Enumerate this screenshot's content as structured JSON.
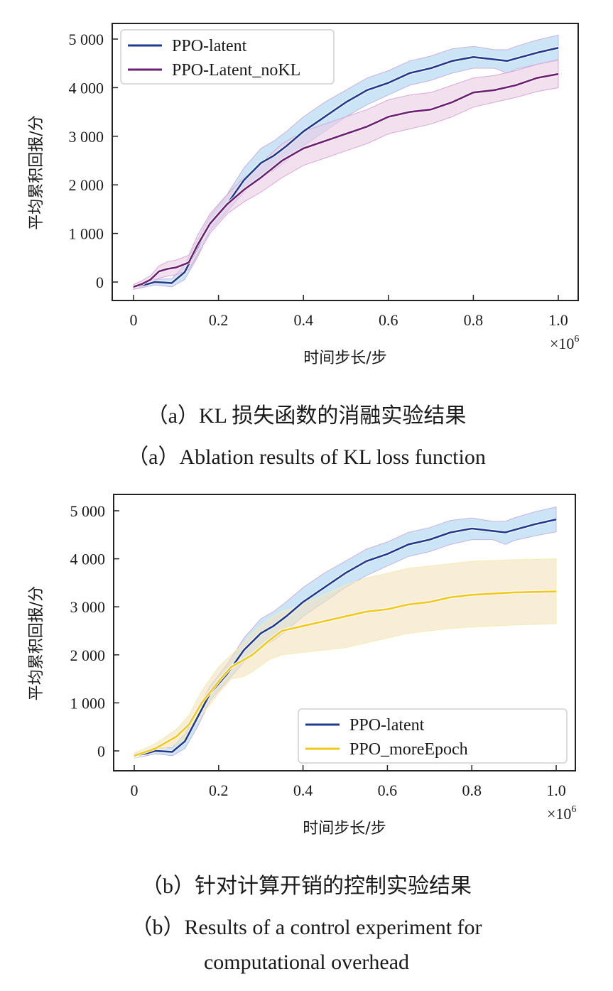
{
  "chart_data": [
    {
      "type": "line",
      "panel": "a",
      "xlabel": "时间步长/步",
      "ylabel": "平均累积回报/分",
      "x_multiplier": "×10",
      "x_multiplier_exp": "6",
      "xlim": [
        -0.05,
        1.05
      ],
      "ylim": [
        -400,
        5300
      ],
      "xticks": [
        0,
        0.2,
        0.4,
        0.6,
        0.8,
        1.0
      ],
      "xtick_labels": [
        "0",
        "0.2",
        "0.4",
        "0.6",
        "0.8",
        "1.0"
      ],
      "yticks": [
        0,
        1000,
        2000,
        3000,
        4000,
        5000
      ],
      "ytick_labels": [
        "0",
        "1 000",
        "2 000",
        "3 000",
        "4 000",
        "5 000"
      ],
      "grid": false,
      "legend_position": "top-left",
      "series": [
        {
          "name": "PPO-latent",
          "color": "#1f3a8f",
          "band_color": "#a9d4f2",
          "band_edge": "#c9b3dc",
          "x": [
            0,
            0.03,
            0.05,
            0.07,
            0.09,
            0.12,
            0.15,
            0.18,
            0.22,
            0.26,
            0.3,
            0.33,
            0.36,
            0.4,
            0.45,
            0.5,
            0.55,
            0.6,
            0.65,
            0.7,
            0.75,
            0.8,
            0.85,
            0.88,
            0.9,
            0.95,
            1.0
          ],
          "y": [
            -100,
            -50,
            0,
            -10,
            -20,
            200,
            700,
            1200,
            1600,
            2100,
            2450,
            2600,
            2800,
            3100,
            3400,
            3700,
            3950,
            4100,
            4300,
            4400,
            4550,
            4630,
            4580,
            4550,
            4600,
            4720,
            4820
          ],
          "lower": [
            -150,
            -100,
            -60,
            -80,
            -100,
            50,
            500,
            1050,
            1450,
            1850,
            2150,
            2300,
            2500,
            2800,
            3100,
            3400,
            3650,
            3850,
            4050,
            4150,
            4300,
            4400,
            4400,
            4300,
            4380,
            4480,
            4560
          ],
          "upper": [
            -50,
            0,
            60,
            60,
            70,
            350,
            850,
            1350,
            1800,
            2350,
            2750,
            2900,
            3100,
            3400,
            3700,
            3950,
            4200,
            4350,
            4550,
            4650,
            4800,
            4850,
            4780,
            4780,
            4850,
            4980,
            5080
          ]
        },
        {
          "name": "PPO-Latent_noKL",
          "color": "#6e1f73",
          "band_color": "#eacbe4",
          "band_edge": "#d7a9d6",
          "x": [
            0,
            0.02,
            0.04,
            0.06,
            0.08,
            0.1,
            0.13,
            0.15,
            0.18,
            0.22,
            0.26,
            0.3,
            0.35,
            0.4,
            0.45,
            0.5,
            0.55,
            0.6,
            0.65,
            0.7,
            0.75,
            0.8,
            0.85,
            0.9,
            0.95,
            1.0
          ],
          "y": [
            -100,
            -40,
            50,
            220,
            270,
            300,
            400,
            750,
            1200,
            1600,
            1900,
            2150,
            2500,
            2750,
            2900,
            3050,
            3200,
            3400,
            3500,
            3550,
            3700,
            3900,
            3950,
            4050,
            4200,
            4280
          ],
          "lower": [
            -150,
            -100,
            -30,
            80,
            120,
            150,
            250,
            550,
            1000,
            1400,
            1650,
            1850,
            2150,
            2400,
            2550,
            2700,
            2850,
            3050,
            3150,
            3250,
            3400,
            3600,
            3700,
            3800,
            3920,
            4000
          ],
          "upper": [
            -50,
            30,
            130,
            330,
            420,
            450,
            550,
            950,
            1400,
            1800,
            2150,
            2450,
            2850,
            3100,
            3250,
            3400,
            3550,
            3750,
            3850,
            3900,
            4050,
            4200,
            4250,
            4350,
            4480,
            4580
          ]
        }
      ]
    },
    {
      "type": "line",
      "panel": "b",
      "xlabel": "时间步长/步",
      "ylabel": "平均累积回报/分",
      "x_multiplier": "×10",
      "x_multiplier_exp": "6",
      "xlim": [
        -0.05,
        1.05
      ],
      "ylim": [
        -400,
        5300
      ],
      "xticks": [
        0,
        0.2,
        0.4,
        0.6,
        0.8,
        1.0
      ],
      "xtick_labels": [
        "0",
        "0.2",
        "0.4",
        "0.6",
        "0.8",
        "1.0"
      ],
      "yticks": [
        0,
        1000,
        2000,
        3000,
        4000,
        5000
      ],
      "ytick_labels": [
        "0",
        "1 000",
        "2 000",
        "3 000",
        "4 000",
        "5 000"
      ],
      "grid": false,
      "legend_position": "bottom-right",
      "series": [
        {
          "name": "PPO-latent",
          "color": "#1f3a8f",
          "band_color": "#a9d4f2",
          "band_edge": "#c9b3dc",
          "x": [
            0,
            0.03,
            0.05,
            0.07,
            0.09,
            0.12,
            0.15,
            0.18,
            0.22,
            0.26,
            0.3,
            0.33,
            0.36,
            0.4,
            0.45,
            0.5,
            0.55,
            0.6,
            0.65,
            0.7,
            0.75,
            0.8,
            0.85,
            0.88,
            0.9,
            0.95,
            1.0
          ],
          "y": [
            -100,
            -50,
            0,
            -10,
            -20,
            200,
            700,
            1200,
            1600,
            2100,
            2450,
            2600,
            2800,
            3100,
            3400,
            3700,
            3950,
            4100,
            4300,
            4400,
            4550,
            4630,
            4580,
            4550,
            4600,
            4720,
            4820
          ],
          "lower": [
            -150,
            -100,
            -60,
            -80,
            -100,
            50,
            500,
            1050,
            1450,
            1850,
            2150,
            2300,
            2500,
            2800,
            3100,
            3400,
            3650,
            3850,
            4050,
            4150,
            4300,
            4400,
            4400,
            4300,
            4380,
            4480,
            4560
          ],
          "upper": [
            -50,
            0,
            60,
            60,
            70,
            350,
            850,
            1350,
            1800,
            2350,
            2750,
            2900,
            3100,
            3400,
            3700,
            3950,
            4200,
            4350,
            4550,
            4650,
            4800,
            4850,
            4780,
            4780,
            4850,
            4980,
            5080
          ]
        },
        {
          "name": "PPO_moreEpoch",
          "color": "#f2c81a",
          "band_color": "#f3e2be",
          "band_edge": "#f5ecb0",
          "x": [
            0,
            0.05,
            0.1,
            0.13,
            0.16,
            0.2,
            0.23,
            0.26,
            0.28,
            0.32,
            0.35,
            0.4,
            0.45,
            0.5,
            0.55,
            0.6,
            0.65,
            0.7,
            0.75,
            0.8,
            0.9,
            1.0
          ],
          "y": [
            -100,
            50,
            300,
            550,
            1000,
            1450,
            1750,
            1900,
            2000,
            2300,
            2500,
            2600,
            2700,
            2800,
            2900,
            2950,
            3050,
            3100,
            3200,
            3250,
            3300,
            3320
          ],
          "lower": [
            -150,
            -20,
            150,
            350,
            750,
            1200,
            1500,
            1550,
            1650,
            1900,
            2000,
            2050,
            2100,
            2150,
            2250,
            2350,
            2450,
            2500,
            2550,
            2580,
            2620,
            2650
          ],
          "upper": [
            -50,
            150,
            450,
            750,
            1250,
            1750,
            2000,
            2250,
            2450,
            2750,
            2900,
            3050,
            3250,
            3450,
            3600,
            3700,
            3800,
            3850,
            3900,
            3950,
            3980,
            4000
          ]
        }
      ]
    }
  ],
  "captions": {
    "a_cn": "（a）KL 损失函数的消融实验结果",
    "a_en": "（a）Ablation results of KL loss function",
    "b_cn": "（b）针对计算开销的控制实验结果",
    "b_en_line1": "（b）Results of a control experiment for",
    "b_en_line2": "computational overhead"
  }
}
